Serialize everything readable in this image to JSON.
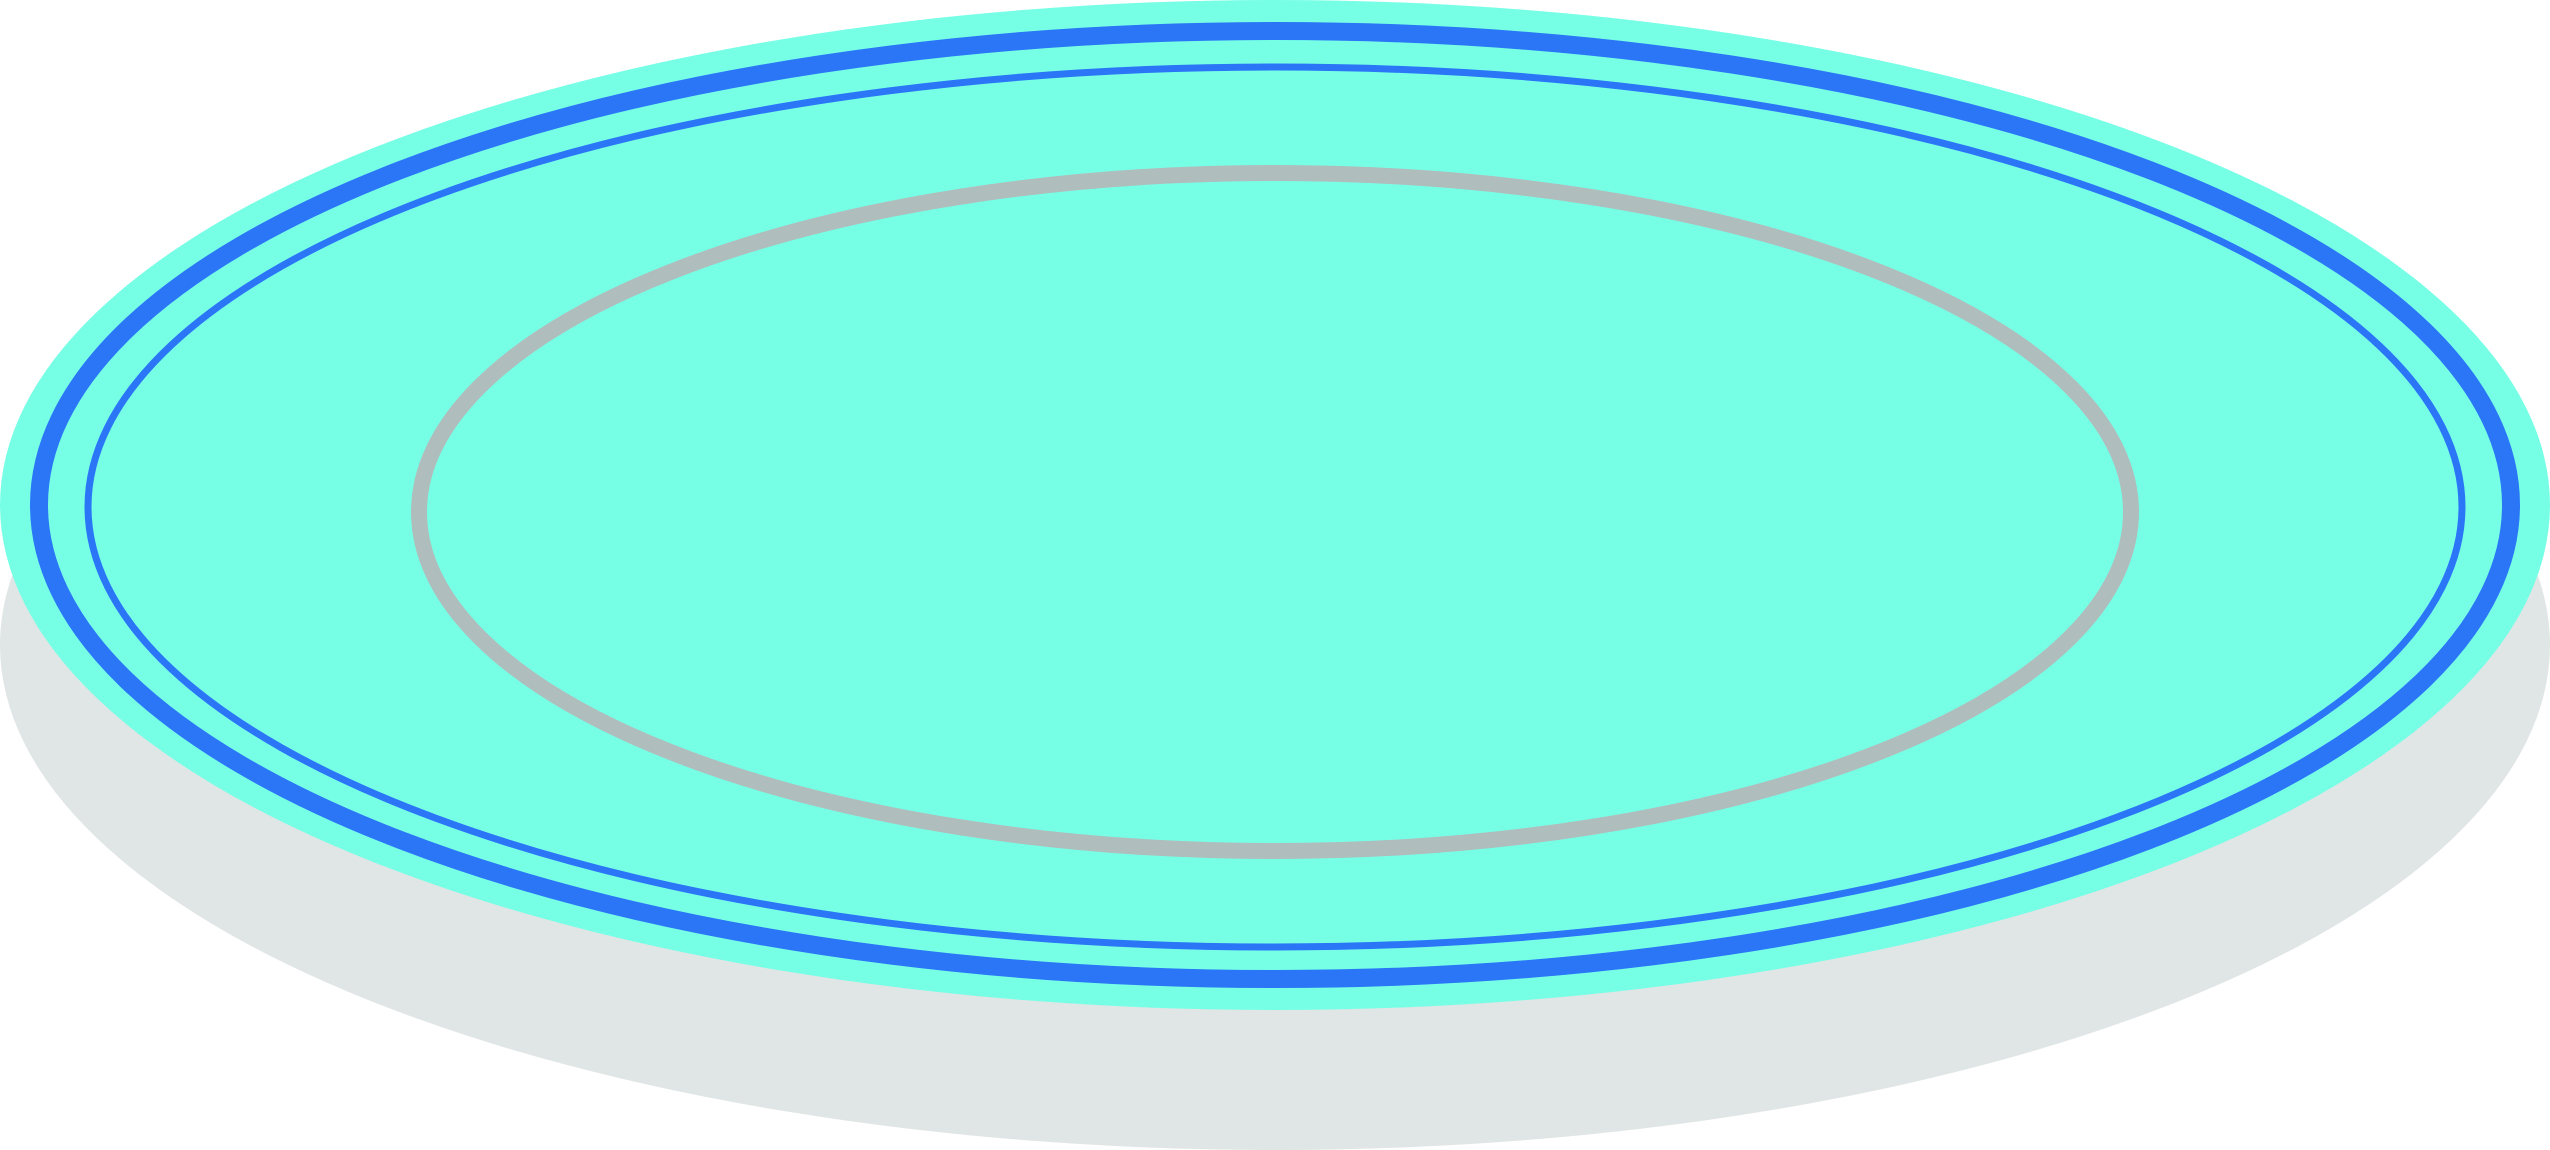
{
  "illustration": {
    "subject": "plate-icon",
    "colors": {
      "shadow": "#E0E5E5",
      "plate_fill": "#77FFE6",
      "rim_blue": "#2B75F7",
      "inner_ring_gray": "#B0BDBD",
      "background": "#FFFFFF"
    }
  }
}
